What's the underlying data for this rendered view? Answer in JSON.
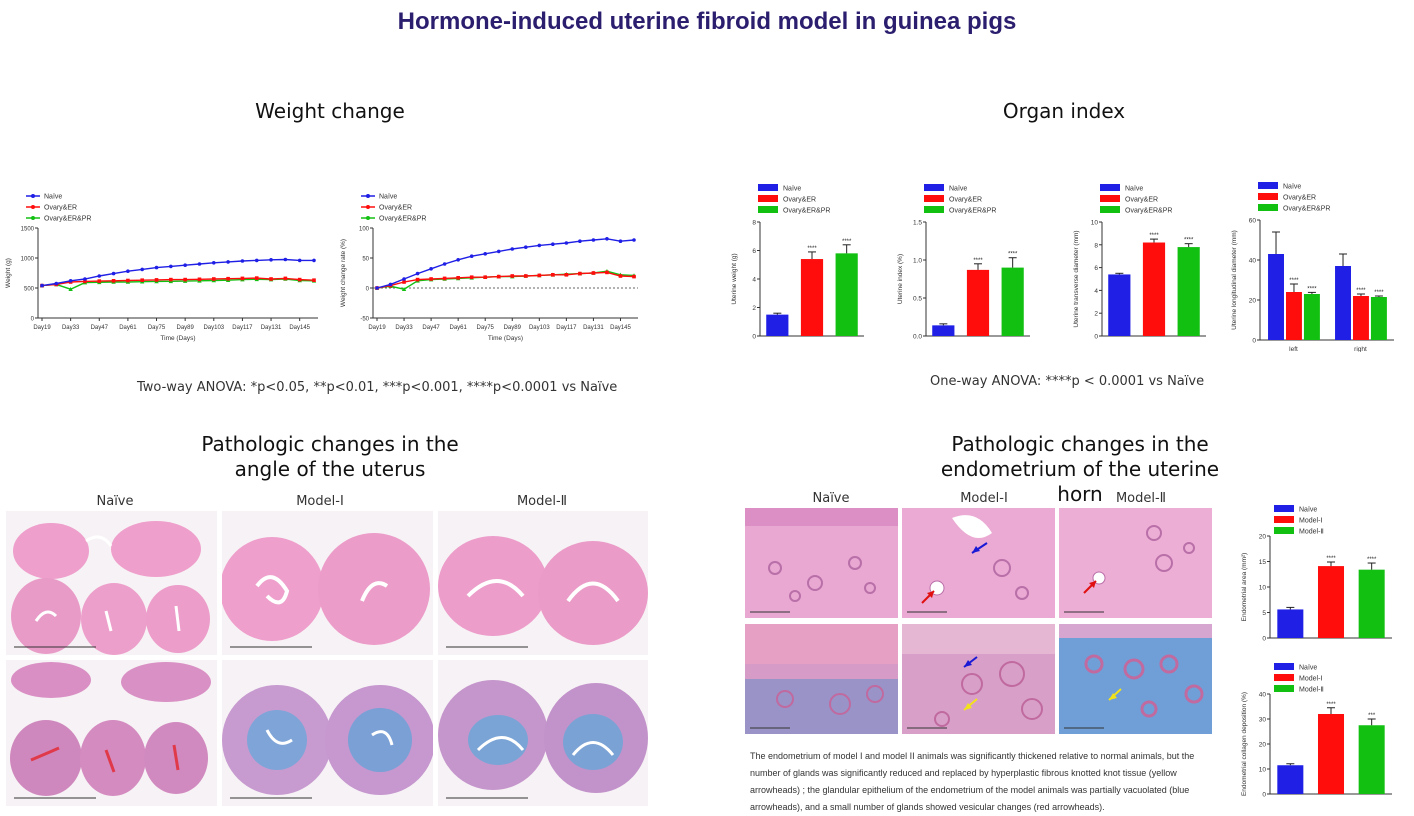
{
  "title": "Hormone-induced uterine fibroid model in guinea pigs",
  "sections": {
    "weight": "Weight change",
    "organ": "Organ index",
    "angle": "Pathologic changes in the angle of the uterus",
    "endo": "Pathologic changes in the endometrium of the uterine horn"
  },
  "captions": {
    "weight": "Two-way  ANOVA: *p<0.05, **p<0.01, ***p<0.001, ****p<0.0001 vs Naïve",
    "organ": "One-way  ANOVA: ****p < 0.0001 vs Naïve"
  },
  "histology": {
    "angle_columns": [
      "Naïve",
      "Model-Ⅰ",
      "Model-Ⅱ"
    ],
    "endo_columns": [
      "Naïve",
      "Model-Ⅰ",
      "Model-Ⅱ"
    ],
    "description": "The endometrium of model I and model II animals was significantly thickened relative to normal animals, but the number of glands was significantly reduced and replaced by hyperplastic fibrous knotted knot tissue (yellow arrowheads) ; the glandular epithelium of the endometrium of the model animals was partially vacuolated (blue arrowheads), and a small number of glands showed vesicular changes (red arrowheads)."
  },
  "colors": {
    "blue": "#1f1fe6",
    "red": "#ff0d0d",
    "green": "#12c012",
    "title": "#2b1e6e",
    "he_pink": "#f0a8d0",
    "masson_blue": "#7aa6d8"
  },
  "chart_data": [
    {
      "type": "line",
      "name": "weight",
      "legend": [
        "Naïve",
        "Ovary&ER",
        "Ovary&ER&PR"
      ],
      "xlabel": "Time (Days)",
      "ylabel": "Weight (g)",
      "ylim": [
        0,
        1500
      ],
      "yticks": [
        "0",
        "500",
        "1000",
        "1500"
      ],
      "xticks": [
        "Day19",
        "Day33",
        "Day47",
        "Day61",
        "Day75",
        "Day89",
        "Day103",
        "Day117",
        "Day131",
        "Day145"
      ],
      "x": [
        19,
        26,
        33,
        40,
        47,
        54,
        61,
        68,
        75,
        82,
        89,
        96,
        103,
        110,
        117,
        124,
        131,
        138,
        145,
        152
      ],
      "series": [
        {
          "name": "Naïve",
          "values": [
            540,
            575,
            620,
            650,
            700,
            740,
            780,
            810,
            840,
            860,
            880,
            900,
            920,
            935,
            950,
            960,
            970,
            975,
            960,
            960
          ]
        },
        {
          "name": "Ovary&ER",
          "values": [
            540,
            560,
            600,
            610,
            615,
            620,
            625,
            630,
            635,
            640,
            640,
            645,
            650,
            655,
            660,
            665,
            650,
            660,
            640,
            630
          ]
        },
        {
          "name": "Ovary&ER&PR",
          "values": [
            540,
            560,
            480,
            590,
            595,
            600,
            600,
            605,
            610,
            612,
            615,
            620,
            625,
            630,
            640,
            645,
            640,
            650,
            625,
            620
          ]
        }
      ]
    },
    {
      "type": "line",
      "name": "weight-change-rate",
      "legend": [
        "Naïve",
        "Ovary&ER",
        "Ovary&ER&PR"
      ],
      "xlabel": "Time (Days)",
      "ylabel": "Weight change rate (%)",
      "ylim": [
        -50,
        100
      ],
      "yticks": [
        "-50",
        "0",
        "50",
        "100"
      ],
      "xticks": [
        "Day19",
        "Day33",
        "Day47",
        "Day61",
        "Day75",
        "Day89",
        "Day103",
        "Day117",
        "Day131",
        "Day145"
      ],
      "x": [
        19,
        26,
        33,
        40,
        47,
        54,
        61,
        68,
        75,
        82,
        89,
        96,
        103,
        110,
        117,
        124,
        131,
        138,
        145,
        152
      ],
      "series": [
        {
          "name": "Naïve",
          "values": [
            0,
            6,
            15,
            24,
            32,
            40,
            47,
            53,
            57,
            61,
            65,
            68,
            71,
            73,
            75,
            78,
            80,
            82,
            78,
            80
          ]
        },
        {
          "name": "Ovary&ER",
          "values": [
            0,
            4,
            10,
            14,
            15,
            16,
            17,
            18,
            18,
            19,
            20,
            20,
            21,
            22,
            22,
            24,
            25,
            26,
            20,
            19
          ]
        },
        {
          "name": "Ovary&ER&PR",
          "values": [
            0,
            3,
            -2,
            12,
            14,
            15,
            16,
            17,
            18,
            19,
            19,
            20,
            21,
            22,
            23,
            24,
            25,
            28,
            22,
            21
          ]
        }
      ]
    },
    {
      "type": "bar",
      "name": "uterine-weight",
      "legend": [
        "Naïve",
        "Ovary&ER",
        "Ovary&ER&PR"
      ],
      "categories": [
        "Naïve",
        "Ovary&ER",
        "Ovary&ER&PR"
      ],
      "values": [
        1.5,
        5.4,
        5.8
      ],
      "errors": [
        0.1,
        0.5,
        0.6
      ],
      "stars": [
        "",
        "****",
        "****"
      ],
      "ylabel": "Uterine weight (g)",
      "ylim": [
        0,
        8
      ],
      "yticks": [
        "0",
        "2",
        "4",
        "6",
        "8"
      ]
    },
    {
      "type": "bar",
      "name": "uterine-index",
      "legend": [
        "Naïve",
        "Ovary&ER",
        "Ovary&ER&PR"
      ],
      "categories": [
        "Naïve",
        "Ovary&ER",
        "Ovary&ER&PR"
      ],
      "values": [
        0.14,
        0.87,
        0.9
      ],
      "errors": [
        0.02,
        0.08,
        0.13
      ],
      "stars": [
        "",
        "****",
        "****"
      ],
      "ylabel": "Uterine index (%)",
      "ylim": [
        0,
        1.5
      ],
      "yticks": [
        "0.0",
        "0.5",
        "1.0",
        "1.5"
      ]
    },
    {
      "type": "bar",
      "name": "uterine-transverse-diameter",
      "legend": [
        "Naïve",
        "Ovary&ER",
        "Ovary&ER&PR"
      ],
      "categories": [
        "Naïve",
        "Ovary&ER",
        "Ovary&ER&PR"
      ],
      "values": [
        5.4,
        8.2,
        7.8
      ],
      "errors": [
        0.1,
        0.3,
        0.3
      ],
      "stars": [
        "",
        "****",
        "****"
      ],
      "ylabel": "Uterine transverse diameter (mm)",
      "ylim": [
        0,
        10
      ],
      "yticks": [
        "0",
        "2",
        "4",
        "6",
        "8",
        "10"
      ]
    },
    {
      "type": "bar",
      "name": "uterine-longitudinal-diameter",
      "legend": [
        "Naïve",
        "Ovary&ER",
        "Ovary&ER&PR"
      ],
      "categories": [
        "left",
        "right"
      ],
      "series": [
        {
          "name": "Naïve",
          "values": [
            43,
            37
          ],
          "errors": [
            11,
            6
          ],
          "stars": [
            "",
            ""
          ]
        },
        {
          "name": "Ovary&ER",
          "values": [
            24,
            22
          ],
          "errors": [
            4,
            1
          ],
          "stars": [
            "****",
            "****"
          ]
        },
        {
          "name": "Ovary&ER&PR",
          "values": [
            23,
            21.5
          ],
          "errors": [
            0.8,
            0.5
          ],
          "stars": [
            "****",
            "****"
          ]
        }
      ],
      "ylabel": "Uterine longitudinal diameter (mm)",
      "ylim": [
        0,
        60
      ],
      "yticks": [
        "0",
        "20",
        "40",
        "60"
      ]
    },
    {
      "type": "bar",
      "name": "endometrial-area",
      "legend": [
        "Naïve",
        "Model-Ⅰ",
        "Model-Ⅱ"
      ],
      "categories": [
        "Naïve",
        "Model-Ⅰ",
        "Model-Ⅱ"
      ],
      "values": [
        5.6,
        14.1,
        13.4
      ],
      "errors": [
        0.4,
        0.8,
        1.3
      ],
      "stars": [
        "",
        "****",
        "****"
      ],
      "ylabel": "Endometrial area (mm²)",
      "ylim": [
        0,
        20
      ],
      "yticks": [
        "0",
        "5",
        "10",
        "15",
        "20"
      ]
    },
    {
      "type": "bar",
      "name": "endometrial-collagen",
      "legend": [
        "Naïve",
        "Model-Ⅰ",
        "Model-Ⅱ"
      ],
      "categories": [
        "Naïve",
        "Model-Ⅰ",
        "Model-Ⅱ"
      ],
      "values": [
        11.5,
        32,
        27.5
      ],
      "errors": [
        0.6,
        2.5,
        2.5
      ],
      "stars": [
        "",
        "****",
        "***"
      ],
      "ylabel": "Endometrial collagen deposition (%)",
      "ylim": [
        0,
        40
      ],
      "yticks": [
        "0",
        "10",
        "20",
        "30",
        "40"
      ]
    }
  ]
}
